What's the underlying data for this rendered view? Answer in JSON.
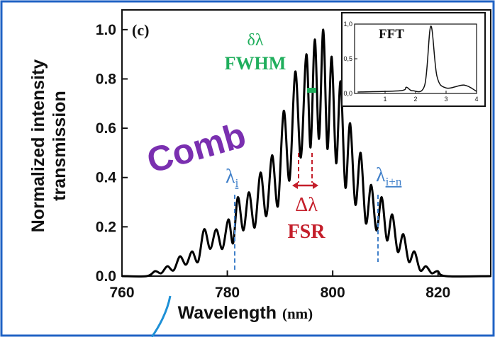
{
  "chart_data": {
    "type": "line",
    "panel_label": "(c)",
    "title": "",
    "xlabel": "Wavelength",
    "xlabel_unit": "(nm)",
    "ylabel_line1": "Normalized intensity",
    "ylabel_line2": "transmission",
    "xlim": [
      760,
      830
    ],
    "ylim": [
      0.0,
      1.08
    ],
    "xticks": [
      760,
      780,
      800,
      820
    ],
    "yticks": [
      0.0,
      0.2,
      0.4,
      0.6,
      0.8,
      1.0
    ],
    "xtick_labels": [
      "760",
      "780",
      "800",
      "820"
    ],
    "ytick_labels": [
      "0.0",
      "0.2",
      "0.4",
      "0.6",
      "0.8",
      "1.0"
    ],
    "series": [
      {
        "color": "#000000",
        "peaks": [
          {
            "x": 766.3,
            "y": 0.02
          },
          {
            "x": 768.6,
            "y": 0.04
          },
          {
            "x": 771.0,
            "y": 0.08
          },
          {
            "x": 773.3,
            "y": 0.1
          },
          {
            "x": 775.6,
            "y": 0.19
          },
          {
            "x": 777.9,
            "y": 0.19
          },
          {
            "x": 780.2,
            "y": 0.23
          },
          {
            "x": 782.0,
            "y": 0.32
          },
          {
            "x": 784.1,
            "y": 0.34
          },
          {
            "x": 786.3,
            "y": 0.42
          },
          {
            "x": 788.5,
            "y": 0.49
          },
          {
            "x": 790.7,
            "y": 0.67
          },
          {
            "x": 792.9,
            "y": 0.83
          },
          {
            "x": 795.0,
            "y": 0.9
          },
          {
            "x": 796.6,
            "y": 0.96
          },
          {
            "x": 798.2,
            "y": 1.0
          },
          {
            "x": 799.8,
            "y": 0.89
          },
          {
            "x": 801.5,
            "y": 0.79
          },
          {
            "x": 803.3,
            "y": 0.62
          },
          {
            "x": 805.3,
            "y": 0.5
          },
          {
            "x": 807.3,
            "y": 0.37
          },
          {
            "x": 809.3,
            "y": 0.32
          },
          {
            "x": 811.3,
            "y": 0.25
          },
          {
            "x": 813.4,
            "y": 0.17
          },
          {
            "x": 815.5,
            "y": 0.1
          },
          {
            "x": 817.7,
            "y": 0.04
          },
          {
            "x": 819.9,
            "y": 0.02
          }
        ]
      }
    ],
    "inset": {
      "label": "FFT",
      "xlim": [
        0,
        4
      ],
      "ylim": [
        0,
        1.0
      ],
      "xtick_labels": [
        "1",
        "2",
        "3",
        "4"
      ],
      "ytick_labels": [
        "0,0",
        "0,5",
        "1,0"
      ],
      "points": [
        {
          "x": 0.1,
          "y": 0.02
        },
        {
          "x": 1.5,
          "y": 0.04
        },
        {
          "x": 1.7,
          "y": 0.09
        },
        {
          "x": 1.9,
          "y": 0.04
        },
        {
          "x": 2.3,
          "y": 0.12
        },
        {
          "x": 2.5,
          "y": 0.97
        },
        {
          "x": 2.7,
          "y": 0.25
        },
        {
          "x": 3.0,
          "y": 0.08
        },
        {
          "x": 3.6,
          "y": 0.12
        },
        {
          "x": 4.0,
          "y": 0.03
        }
      ]
    },
    "annotations": {
      "comb": "Comb",
      "delta_lambda_small": "δλ",
      "fwhm": "FWHM",
      "delta_lambda": "Δλ",
      "fsr": "FSR",
      "lambda_i_base": "λ",
      "lambda_i_sub": "i",
      "lambda_in_base": "λ",
      "lambda_in_sub": "i+n"
    },
    "colors": {
      "comb": "#7a2fb0",
      "fwhm": "#1fae5c",
      "fsr": "#c41e2a",
      "lambda": "#3f7fc9",
      "frame": "#1f62c4"
    }
  }
}
